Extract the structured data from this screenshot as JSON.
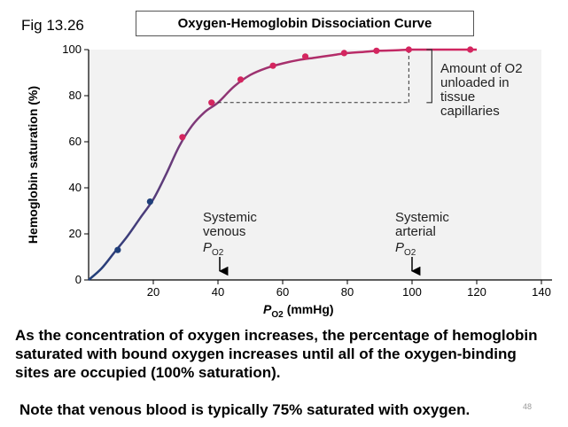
{
  "figure_label": "Fig 13.26",
  "chart_data": {
    "type": "line",
    "title": "Oxygen-Hemoglobin Dissociation Curve",
    "ylabel": "Hemoglobin saturation (%)",
    "xlabel_main": "P",
    "xlabel_sub": "O2",
    "xlabel_unit": "(mmHg)",
    "xlim": [
      0,
      140
    ],
    "ylim": [
      0,
      100
    ],
    "xticks": [
      20,
      40,
      60,
      80,
      100,
      120,
      140
    ],
    "yticks": [
      0,
      20,
      40,
      60,
      80,
      100
    ],
    "curve": {
      "x": [
        0,
        4,
        8,
        12,
        16,
        20,
        24,
        28,
        32,
        36,
        40,
        45,
        50,
        55,
        60,
        65,
        70,
        75,
        80,
        85,
        90,
        95,
        100,
        105,
        110,
        115,
        120
      ],
      "y": [
        0,
        5,
        12,
        19,
        27,
        35,
        46,
        58,
        67,
        73,
        77,
        84,
        89,
        92,
        94,
        95.5,
        96.5,
        97.5,
        98.5,
        99,
        99.5,
        99.7,
        100,
        100,
        100,
        100,
        100
      ]
    },
    "points": {
      "x": [
        9,
        19,
        29,
        38,
        47,
        57,
        67,
        79,
        89,
        99,
        118
      ],
      "y": [
        13,
        34,
        62,
        77,
        87,
        93,
        97,
        98.5,
        99.5,
        100,
        100
      ]
    },
    "venous_point": {
      "x": 38,
      "y": 77
    },
    "arterial_point": {
      "x": 99,
      "y": 100
    },
    "annotations": {
      "unloaded": [
        "Amount of O2",
        "unloaded in",
        "tissue",
        "capillaries"
      ],
      "venous": {
        "line1": "Systemic",
        "line2": "venous",
        "p": "P",
        "sub": "O2"
      },
      "arterial": {
        "line1": "Systemic",
        "line2": "arterial",
        "p": "P",
        "sub": "O2"
      }
    },
    "colors": {
      "curve_start": "#1f3f7a",
      "curve_end": "#d4255f",
      "points": "#d4255f",
      "points_low": "#1f3f7a",
      "plot_bg": "#f2f2f2"
    }
  },
  "text": {
    "description": "As the concentration of oxygen increases, the percentage of hemoglobin saturated with bound oxygen increases until all of the oxygen-binding sites are occupied (100% saturation).",
    "note": "Note that venous blood is typically 75% saturated with oxygen.",
    "slide_number": "48"
  }
}
